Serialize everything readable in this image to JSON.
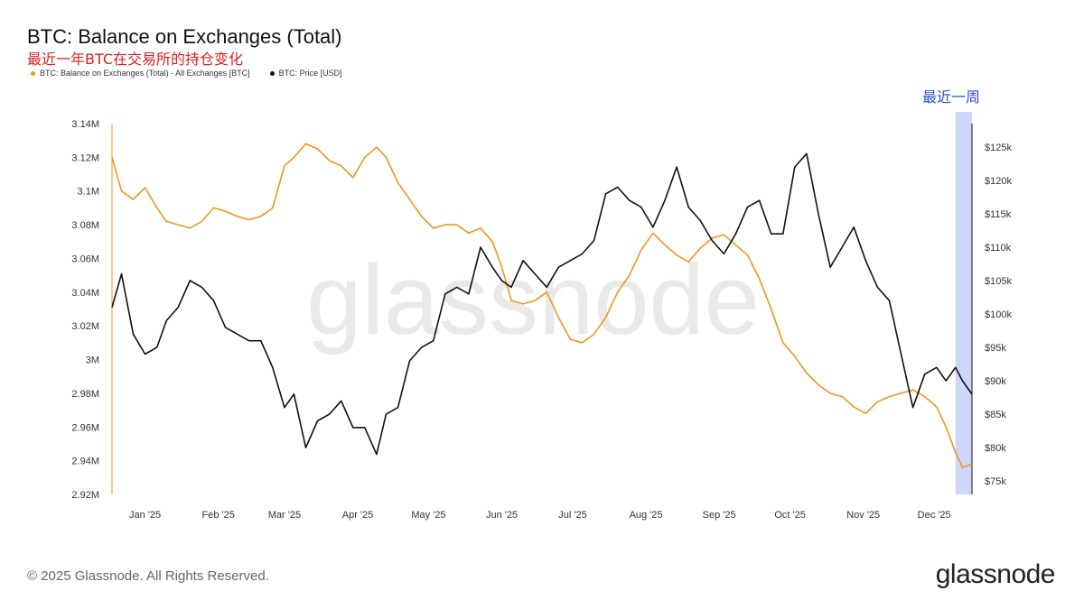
{
  "header": {
    "title": "BTC: Balance on Exchanges (Total)",
    "subtitle": "最近一年BTC在交易所的持仓变化",
    "legend": [
      {
        "label": "BTC: Balance on Exchanges (Total) - All Exchanges [BTC]",
        "color": "#f0961e"
      },
      {
        "label": "BTC: Price [USD]",
        "color": "#111111"
      }
    ]
  },
  "annotation": {
    "label": "最近一周",
    "color": "#2a4fd6",
    "start": "2025-12-10",
    "end": "2025-12-17"
  },
  "watermark": "glassnode",
  "footer": {
    "copyright": "© 2025 Glassnode. All Rights Reserved.",
    "brand": "glassnode"
  },
  "chart_data": {
    "type": "line",
    "x_axis": {
      "ticks": [
        "Jan '25",
        "Feb '25",
        "Mar '25",
        "Apr '25",
        "May '25",
        "Jun '25",
        "Jul '25",
        "Aug '25",
        "Sep '25",
        "Oct '25",
        "Nov '25",
        "Dec '25"
      ],
      "range": [
        "2024-12-18",
        "2025-12-17"
      ]
    },
    "y_left": {
      "ticks": [
        "2.92M",
        "2.94M",
        "2.96M",
        "2.98M",
        "3M",
        "3.02M",
        "3.04M",
        "3.06M",
        "3.08M",
        "3.1M",
        "3.12M",
        "3.14M"
      ],
      "ylim": [
        2920000,
        3140000
      ]
    },
    "y_right": {
      "ticks": [
        "$75k",
        "$80k",
        "$85k",
        "$90k",
        "$95k",
        "$100k",
        "$105k",
        "$110k",
        "$115k",
        "$120k",
        "$125k"
      ],
      "ylim": [
        73000,
        128500
      ]
    },
    "grid": false,
    "legend_position": "top-left",
    "series": [
      {
        "name": "BTC: Balance on Exchanges (Total) - All Exchanges [BTC]",
        "color": "#f0961e",
        "axis": "left",
        "x": [
          "2024-12-18",
          "2024-12-22",
          "2024-12-27",
          "2025-01-01",
          "2025-01-06",
          "2025-01-10",
          "2025-01-15",
          "2025-01-20",
          "2025-01-25",
          "2025-01-30",
          "2025-02-04",
          "2025-02-09",
          "2025-02-14",
          "2025-02-19",
          "2025-02-24",
          "2025-03-01",
          "2025-03-05",
          "2025-03-10",
          "2025-03-15",
          "2025-03-20",
          "2025-03-25",
          "2025-03-30",
          "2025-04-04",
          "2025-04-09",
          "2025-04-13",
          "2025-04-18",
          "2025-04-23",
          "2025-04-28",
          "2025-05-03",
          "2025-05-08",
          "2025-05-13",
          "2025-05-18",
          "2025-05-23",
          "2025-05-28",
          "2025-06-01",
          "2025-06-05",
          "2025-06-10",
          "2025-06-15",
          "2025-06-20",
          "2025-06-25",
          "2025-06-30",
          "2025-07-05",
          "2025-07-10",
          "2025-07-15",
          "2025-07-20",
          "2025-07-25",
          "2025-07-30",
          "2025-08-04",
          "2025-08-09",
          "2025-08-14",
          "2025-08-19",
          "2025-08-24",
          "2025-08-29",
          "2025-09-03",
          "2025-09-08",
          "2025-09-13",
          "2025-09-18",
          "2025-09-23",
          "2025-09-28",
          "2025-10-03",
          "2025-10-08",
          "2025-10-13",
          "2025-10-18",
          "2025-10-23",
          "2025-10-28",
          "2025-11-02",
          "2025-11-07",
          "2025-11-12",
          "2025-11-17",
          "2025-11-22",
          "2025-11-27",
          "2025-12-02",
          "2025-12-06",
          "2025-12-10",
          "2025-12-13",
          "2025-12-17"
        ],
        "values": [
          3120000,
          3100000,
          3095000,
          3102000,
          3090000,
          3082000,
          3080000,
          3078000,
          3082000,
          3090000,
          3088000,
          3085000,
          3083000,
          3085000,
          3090000,
          3115000,
          3120000,
          3128000,
          3125000,
          3118000,
          3115000,
          3108000,
          3120000,
          3126000,
          3120000,
          3105000,
          3095000,
          3085000,
          3078000,
          3080000,
          3080000,
          3075000,
          3078000,
          3070000,
          3055000,
          3035000,
          3033000,
          3035000,
          3040000,
          3025000,
          3012000,
          3010000,
          3015000,
          3025000,
          3040000,
          3050000,
          3065000,
          3075000,
          3068000,
          3062000,
          3058000,
          3066000,
          3072000,
          3074000,
          3068000,
          3062000,
          3048000,
          3030000,
          3010000,
          3002000,
          2992000,
          2985000,
          2980000,
          2978000,
          2972000,
          2968000,
          2975000,
          2978000,
          2980000,
          2982000,
          2978000,
          2972000,
          2960000,
          2945000,
          2936000,
          2938000
        ]
      },
      {
        "name": "BTC: Price [USD]",
        "color": "#111111",
        "axis": "right",
        "x": [
          "2024-12-18",
          "2024-12-22",
          "2024-12-27",
          "2025-01-01",
          "2025-01-06",
          "2025-01-10",
          "2025-01-15",
          "2025-01-20",
          "2025-01-25",
          "2025-01-30",
          "2025-02-04",
          "2025-02-09",
          "2025-02-14",
          "2025-02-19",
          "2025-02-24",
          "2025-03-01",
          "2025-03-05",
          "2025-03-10",
          "2025-03-15",
          "2025-03-20",
          "2025-03-25",
          "2025-03-30",
          "2025-04-04",
          "2025-04-09",
          "2025-04-13",
          "2025-04-18",
          "2025-04-23",
          "2025-04-28",
          "2025-05-03",
          "2025-05-08",
          "2025-05-13",
          "2025-05-18",
          "2025-05-23",
          "2025-05-28",
          "2025-06-01",
          "2025-06-05",
          "2025-06-10",
          "2025-06-15",
          "2025-06-20",
          "2025-06-25",
          "2025-06-30",
          "2025-07-05",
          "2025-07-10",
          "2025-07-15",
          "2025-07-20",
          "2025-07-25",
          "2025-07-30",
          "2025-08-04",
          "2025-08-09",
          "2025-08-14",
          "2025-08-19",
          "2025-08-24",
          "2025-08-29",
          "2025-09-03",
          "2025-09-08",
          "2025-09-13",
          "2025-09-18",
          "2025-09-23",
          "2025-09-28",
          "2025-10-03",
          "2025-10-08",
          "2025-10-13",
          "2025-10-18",
          "2025-10-23",
          "2025-10-28",
          "2025-11-02",
          "2025-11-07",
          "2025-11-12",
          "2025-11-17",
          "2025-11-22",
          "2025-11-27",
          "2025-12-02",
          "2025-12-06",
          "2025-12-10",
          "2025-12-13",
          "2025-12-17"
        ],
        "values": [
          101000,
          106000,
          97000,
          94000,
          95000,
          99000,
          101000,
          105000,
          104000,
          102000,
          98000,
          97000,
          96000,
          96000,
          92000,
          86000,
          88000,
          80000,
          84000,
          85000,
          87000,
          83000,
          83000,
          79000,
          85000,
          86000,
          93000,
          95000,
          96000,
          103000,
          104000,
          103000,
          110000,
          107000,
          105000,
          104000,
          108000,
          106000,
          104000,
          107000,
          108000,
          109000,
          111000,
          118000,
          119000,
          117000,
          116000,
          113000,
          117000,
          122000,
          116000,
          114000,
          111000,
          109000,
          112000,
          116000,
          117000,
          112000,
          112000,
          122000,
          124000,
          115000,
          107000,
          110000,
          113000,
          108000,
          104000,
          102000,
          94000,
          86000,
          91000,
          92000,
          90000,
          92000,
          90000,
          88000
        ]
      }
    ]
  }
}
